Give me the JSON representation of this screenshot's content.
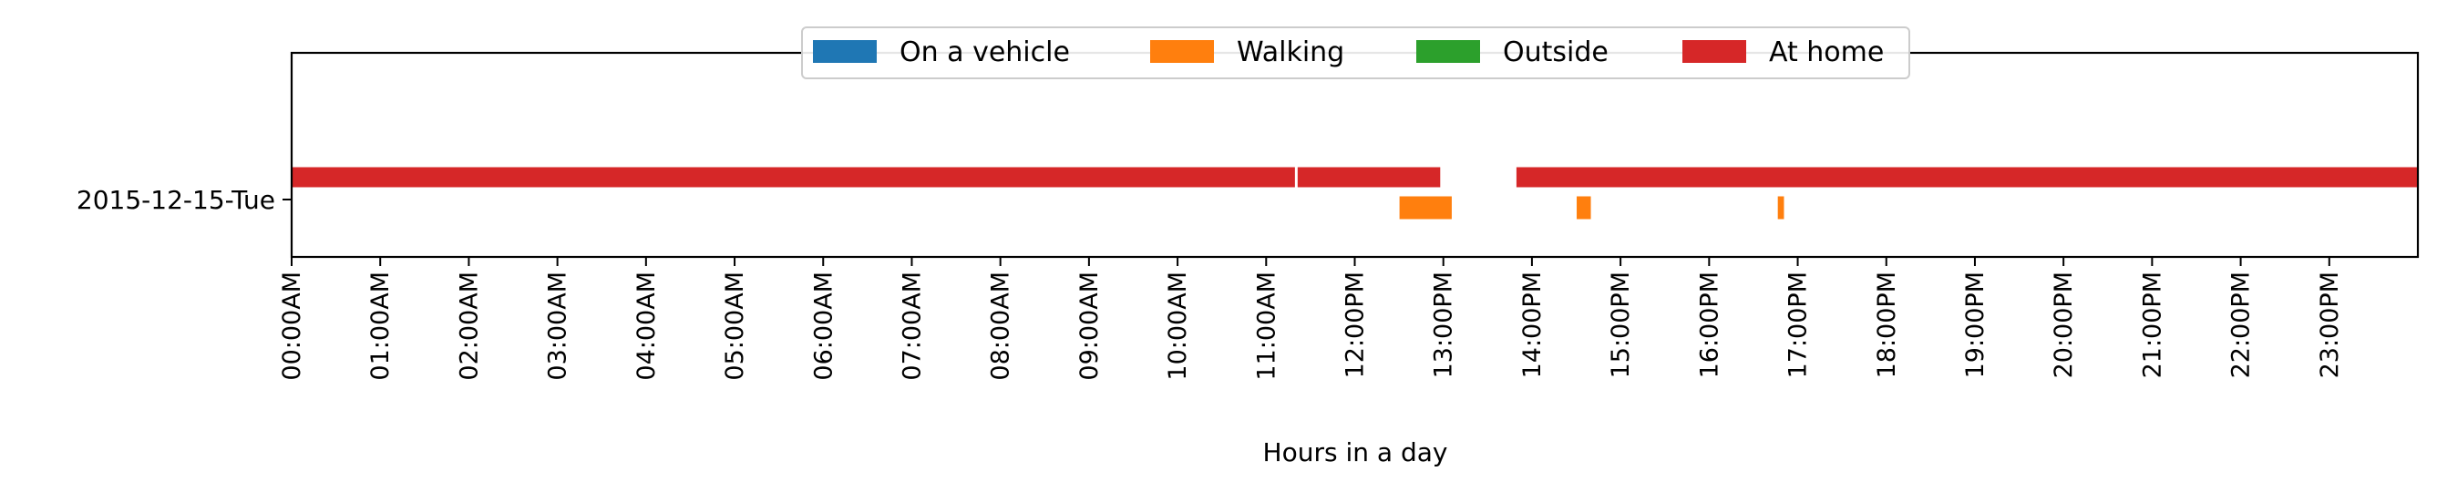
{
  "chart_data": {
    "type": "timeline",
    "xlabel": "Hours in a day",
    "ylabel": "",
    "xlim": [
      0,
      24
    ],
    "categories": [
      "2015-12-15-Tue"
    ],
    "x_tick_labels": [
      "00:00AM",
      "01:00AM",
      "02:00AM",
      "03:00AM",
      "04:00AM",
      "05:00AM",
      "06:00AM",
      "07:00AM",
      "08:00AM",
      "09:00AM",
      "10:00AM",
      "11:00AM",
      "12:00PM",
      "13:00PM",
      "14:00PM",
      "15:00PM",
      "16:00PM",
      "17:00PM",
      "18:00PM",
      "19:00PM",
      "20:00PM",
      "21:00PM",
      "22:00PM",
      "23:00PM"
    ],
    "legend": {
      "placement": "upper-center",
      "columns": 4
    },
    "series": [
      {
        "name": "On a vehicle",
        "color": "#1f77b4",
        "lane": "upper",
        "intervals": []
      },
      {
        "name": "Walking",
        "color": "#ff7f0e",
        "lane": "lower",
        "intervals": [
          [
            12.5,
            13.1
          ],
          [
            14.5,
            14.67
          ],
          [
            16.77,
            16.85
          ]
        ]
      },
      {
        "name": "Outside",
        "color": "#2ca02c",
        "lane": "upper",
        "intervals": []
      },
      {
        "name": "At home",
        "color": "#d62728",
        "lane": "upper",
        "intervals": [
          [
            0,
            11.33
          ],
          [
            11.35,
            12.97
          ],
          [
            13.82,
            24
          ]
        ]
      }
    ],
    "grid": false
  }
}
